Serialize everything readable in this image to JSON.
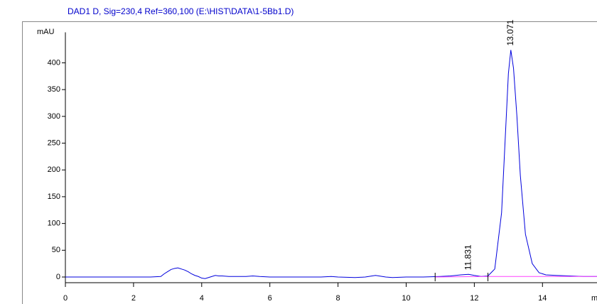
{
  "chart_data": {
    "type": "line",
    "title": "DAD1 D, Sig=230,4 Ref=360,100 (E:\\HIST\\DATA\\1-5Bb1.D)",
    "y_label": "mAU",
    "x_label": "min",
    "xlim": [
      0,
      15.6
    ],
    "ylim": [
      -10.6,
      457
    ],
    "xticks": [
      0,
      2,
      4,
      6,
      8,
      10,
      12,
      14
    ],
    "yticks": [
      0,
      50,
      100,
      150,
      200,
      250,
      300,
      350,
      400
    ],
    "series": [
      {
        "color": "#0000dd",
        "x": [
          0,
          0.5,
          1,
          1.5,
          2,
          2.5,
          2.8,
          2.9,
          3.0,
          3.1,
          3.2,
          3.3,
          3.4,
          3.5,
          3.6,
          3.7,
          3.8,
          3.9,
          4.0,
          4.1,
          4.2,
          4.3,
          4.4,
          4.5,
          4.6,
          4.8,
          5.0,
          5.3,
          5.5,
          5.7,
          6.0,
          6.5,
          7.0,
          7.5,
          7.8,
          8.0,
          8.5,
          8.8,
          9.0,
          9.1,
          9.2,
          9.4,
          9.6,
          10.0,
          10.5,
          11.0,
          11.3,
          11.6,
          11.831,
          12.0,
          12.2,
          12.4,
          12.6,
          12.8,
          12.9,
          13.0,
          13.071,
          13.15,
          13.25,
          13.35,
          13.5,
          13.7,
          13.9,
          14.1,
          14.4,
          14.8,
          15.2,
          15.6
        ],
        "values": [
          0,
          0,
          0,
          0,
          0,
          0,
          1,
          6,
          10,
          14,
          16,
          17,
          15,
          13,
          10,
          6,
          3,
          1,
          -2,
          -3,
          -1,
          1,
          3,
          2,
          2,
          1,
          1,
          1,
          2,
          1,
          0,
          0,
          0,
          0,
          1,
          0,
          -1,
          0,
          2,
          3,
          2,
          0,
          -1,
          0,
          0,
          1,
          2,
          4,
          5,
          3,
          1,
          2,
          15,
          120,
          250,
          380,
          424,
          390,
          300,
          190,
          80,
          25,
          8,
          4,
          3,
          2,
          1,
          1
        ]
      },
      {
        "color": "#ff44ff",
        "x": [
          10.85,
          12.4,
          15.6
        ],
        "values": [
          0,
          1,
          1
        ]
      }
    ],
    "markers": [
      10.85,
      12.4
    ],
    "peaks": [
      {
        "label": "11.831",
        "x": 11.831,
        "y": 5
      },
      {
        "label": "13.071",
        "x": 13.071,
        "y": 424
      }
    ]
  }
}
